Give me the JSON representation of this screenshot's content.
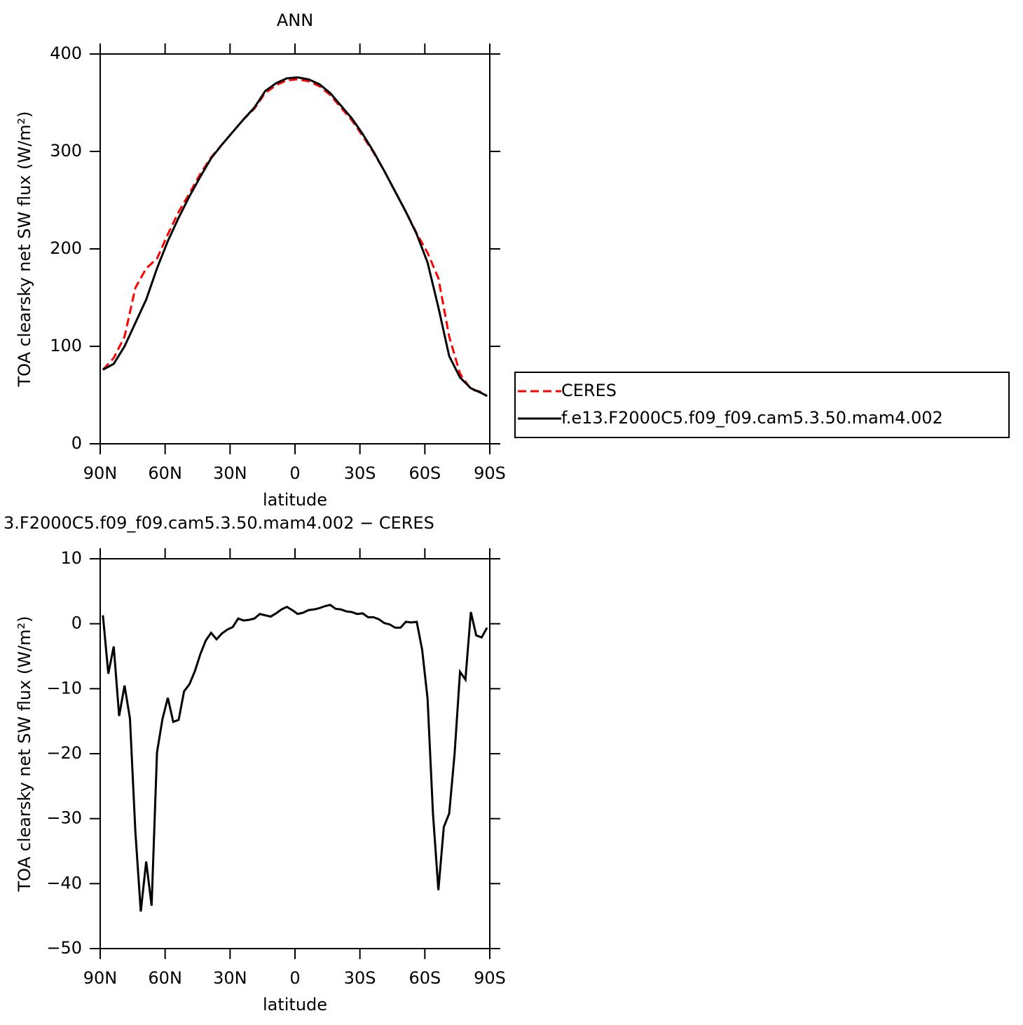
{
  "chart_data": [
    {
      "type": "line",
      "title": "ANN",
      "x_label": "latitude",
      "y_label": "TOA clearsky net SW flux (W/m²)",
      "x": [
        88.75,
        83.75,
        78.75,
        73.75,
        68.75,
        63.75,
        58.75,
        53.75,
        48.75,
        43.75,
        38.75,
        33.75,
        28.75,
        23.75,
        18.75,
        13.75,
        8.75,
        3.75,
        -1.25,
        -6.25,
        -11.25,
        -16.25,
        -21.25,
        -26.25,
        -31.25,
        -36.25,
        -41.25,
        -46.25,
        -51.25,
        -56.25,
        -61.25,
        -66.25,
        -71.25,
        -76.25,
        -81.25,
        -86.25,
        -88.75
      ],
      "series": [
        {
          "name": "CERES",
          "color": "#ff0000",
          "line_style": "dashed",
          "values": [
            76,
            88,
            110,
            160,
            180,
            190,
            215,
            238,
            257,
            277,
            294,
            307,
            320,
            333,
            344,
            360,
            368,
            373,
            374,
            372,
            367,
            358,
            345,
            332,
            316,
            299,
            280,
            259,
            238,
            216,
            196,
            170,
            110,
            72,
            56,
            53,
            49
          ]
        },
        {
          "name": "f.e13.F2000C5.f09_f09.cam5.3.50.mam4.002",
          "color": "#000000",
          "line_style": "solid",
          "values": [
            76,
            82,
            100,
            124,
            148,
            180,
            208,
            232,
            254,
            274,
            293,
            307,
            320,
            333,
            345,
            362,
            370,
            375,
            376,
            374,
            369,
            360,
            347,
            334,
            318,
            300,
            280,
            259,
            238,
            215,
            186,
            140,
            90,
            68,
            57,
            52,
            49
          ]
        }
      ],
      "xlim": [
        90,
        -90
      ],
      "xticks": [
        {
          "value": 90,
          "label": "90N"
        },
        {
          "value": 60,
          "label": "60N"
        },
        {
          "value": 30,
          "label": "30N"
        },
        0,
        {
          "value": -30,
          "label": "30S"
        },
        {
          "value": -60,
          "label": "60S"
        },
        {
          "value": -90,
          "label": "90S"
        }
      ],
      "ylim": [
        0,
        400
      ],
      "yticks": [
        0,
        100,
        200,
        300,
        400
      ],
      "grid": false,
      "legend": "right"
    },
    {
      "type": "line",
      "title": "3.F2000C5.f09_f09.cam5.3.50.mam4.002 − CERES",
      "x_label": "latitude",
      "y_label": "TOA clearsky net SW flux (W/m²)",
      "x": [
        88.75,
        86.25,
        83.75,
        81.25,
        78.75,
        76.25,
        73.75,
        71.25,
        68.75,
        66.25,
        63.75,
        61.25,
        58.75,
        56.25,
        53.75,
        51.25,
        48.75,
        46.25,
        43.75,
        41.25,
        38.75,
        36.25,
        33.75,
        31.25,
        28.75,
        26.25,
        23.75,
        21.25,
        18.75,
        16.25,
        13.75,
        11.25,
        8.75,
        6.25,
        3.75,
        1.25,
        -1.25,
        -3.75,
        -6.25,
        -8.75,
        -11.25,
        -13.75,
        -16.25,
        -18.75,
        -21.25,
        -23.75,
        -26.25,
        -28.75,
        -31.25,
        -33.75,
        -36.25,
        -38.75,
        -41.25,
        -43.75,
        -46.25,
        -48.75,
        -51.25,
        -53.75,
        -56.25,
        -58.75,
        -61.25,
        -63.75,
        -66.25,
        -68.75,
        -71.25,
        -73.75,
        -76.25,
        -78.75,
        -81.25,
        -83.75,
        -86.25,
        -88.75
      ],
      "series": [
        {
          "name": null,
          "color": "#000000",
          "line_style": "solid",
          "values": [
            1.3,
            -7.7,
            -3.5,
            -14.2,
            -9.5,
            -14.6,
            -32,
            -44.3,
            -36.6,
            -43.4,
            -19.8,
            -14.7,
            -11.4,
            -15.1,
            -14.8,
            -10.4,
            -9.3,
            -7.3,
            -4.7,
            -2.6,
            -1.4,
            -2.4,
            -1.5,
            -0.9,
            -0.5,
            0.8,
            0.5,
            0.6,
            0.8,
            1.5,
            1.3,
            1.1,
            1.6,
            2.2,
            2.6,
            2.1,
            1.5,
            1.7,
            2.1,
            2.2,
            2.4,
            2.7,
            2.9,
            2.3,
            2.2,
            1.9,
            1.8,
            1.5,
            1.6,
            1.0,
            1.0,
            0.7,
            0.1,
            -0.1,
            -0.6,
            -0.6,
            0.3,
            0.2,
            0.3,
            -4.0,
            -11.5,
            -29.2,
            -41.0,
            -31.3,
            -29.2,
            -20.0,
            -7.4,
            -8.6,
            1.8,
            -1.8,
            -2.1,
            -0.6
          ]
        }
      ],
      "xlim": [
        90,
        -90
      ],
      "xticks": [
        {
          "value": 90,
          "label": "90N"
        },
        {
          "value": 60,
          "label": "60N"
        },
        {
          "value": 30,
          "label": "30N"
        },
        0,
        {
          "value": -30,
          "label": "30S"
        },
        {
          "value": -60,
          "label": "60S"
        },
        {
          "value": -90,
          "label": "90S"
        }
      ],
      "ylim": [
        -50,
        10
      ],
      "yticks": [
        {
          "value": -50,
          "label": "−50"
        },
        {
          "value": -40,
          "label": "−40"
        },
        {
          "value": -30,
          "label": "−30"
        },
        {
          "value": -20,
          "label": "−20"
        },
        {
          "value": -10,
          "label": "−10"
        },
        0,
        10
      ],
      "grid": false
    }
  ]
}
